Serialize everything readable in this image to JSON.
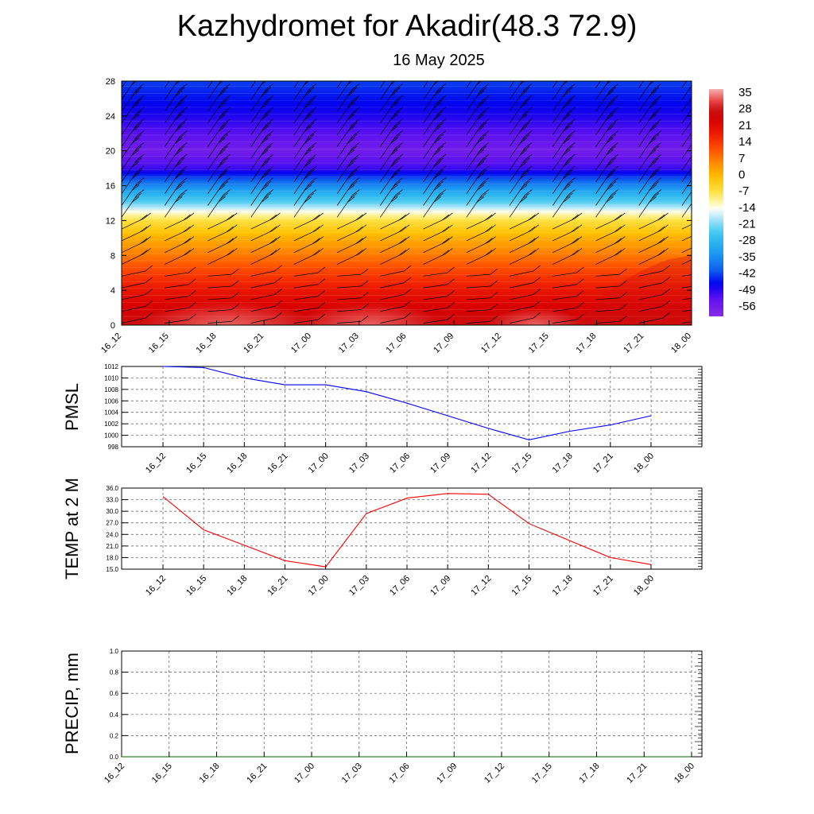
{
  "title": "Kazhydromet for Akadir(48.3 72.9)",
  "subtitle": "16 May 2025",
  "time_labels": [
    "16_12",
    "16_15",
    "16_18",
    "16_21",
    "17_00",
    "17_03",
    "17_06",
    "17_09",
    "17_12",
    "17_15",
    "17_18",
    "17_21",
    "18_00"
  ],
  "chart_data": [
    {
      "type": "heatmap",
      "name_hidden": "cross-section",
      "x": [
        "16_12",
        "16_15",
        "16_18",
        "16_21",
        "17_00",
        "17_03",
        "17_06",
        "17_09",
        "17_12",
        "17_15",
        "17_18",
        "17_21",
        "18_00"
      ],
      "ylim": [
        0,
        28
      ],
      "yticks": [
        0,
        4,
        8,
        12,
        16,
        20,
        24,
        28
      ],
      "colorbar_ticks": [
        35,
        28,
        21,
        14,
        7,
        0,
        -7,
        -14,
        -21,
        -28,
        -35,
        -42,
        -49,
        -56
      ],
      "colorbar_range": [
        -60,
        38
      ],
      "profile": [
        [
          0,
          28
        ],
        [
          2,
          24
        ],
        [
          4,
          20
        ],
        [
          6,
          14
        ],
        [
          8,
          8
        ],
        [
          10,
          2
        ],
        [
          12,
          -6
        ],
        [
          13,
          -13
        ],
        [
          14,
          -22
        ],
        [
          16,
          -35
        ],
        [
          18,
          -50
        ],
        [
          20,
          -56
        ],
        [
          22,
          -52
        ],
        [
          24,
          -48
        ],
        [
          28,
          -42
        ]
      ]
    },
    {
      "type": "line",
      "ylabel": "PMSL",
      "x": [
        "16_12",
        "16_15",
        "16_18",
        "16_21",
        "17_00",
        "17_03",
        "17_06",
        "17_09",
        "17_12",
        "17_15",
        "17_18",
        "17_21",
        "18_00"
      ],
      "values": [
        1012,
        1011.8,
        1010,
        1008.8,
        1008.8,
        1007.6,
        1005.6,
        1003.4,
        1001.2,
        999.2,
        1000.7,
        1001.8,
        1003.4
      ],
      "ylim": [
        998,
        1012
      ],
      "yticks": [
        998,
        1000,
        1002,
        1004,
        1006,
        1008,
        1010,
        1012
      ],
      "color": "#0000ff",
      "grid": true
    },
    {
      "type": "line",
      "ylabel": "TEMP at 2 M",
      "x": [
        "16_12",
        "16_15",
        "16_18",
        "16_21",
        "17_00",
        "17_03",
        "17_06",
        "17_09",
        "17_12",
        "17_15",
        "17_18",
        "17_21",
        "18_00"
      ],
      "values": [
        33.8,
        25.2,
        21.2,
        17.2,
        15.6,
        29.4,
        33.4,
        34.6,
        34.4,
        26.8,
        22.4,
        18.0,
        16.2
      ],
      "ylim": [
        15.0,
        36.0
      ],
      "yticks": [
        "15.0",
        "18.0",
        "21.0",
        "24.0",
        "27.0",
        "30.0",
        "33.0",
        "36.0"
      ],
      "color": "#ff0000",
      "grid": true
    },
    {
      "type": "line",
      "ylabel": "PRECIP, mm",
      "x": [
        "16_12",
        "16_15",
        "16_18",
        "16_21",
        "17_00",
        "17_03",
        "17_06",
        "17_09",
        "17_12",
        "17_15",
        "17_18",
        "17_21",
        "18_00"
      ],
      "values": [
        0,
        0,
        0,
        0,
        0,
        0,
        0,
        0,
        0,
        0,
        0,
        0,
        0
      ],
      "ylim": [
        0.0,
        1.0
      ],
      "yticks": [
        "0.0",
        "0.2",
        "0.4",
        "0.6",
        "0.8",
        "1.0"
      ],
      "color": "#006400",
      "grid": true
    }
  ]
}
